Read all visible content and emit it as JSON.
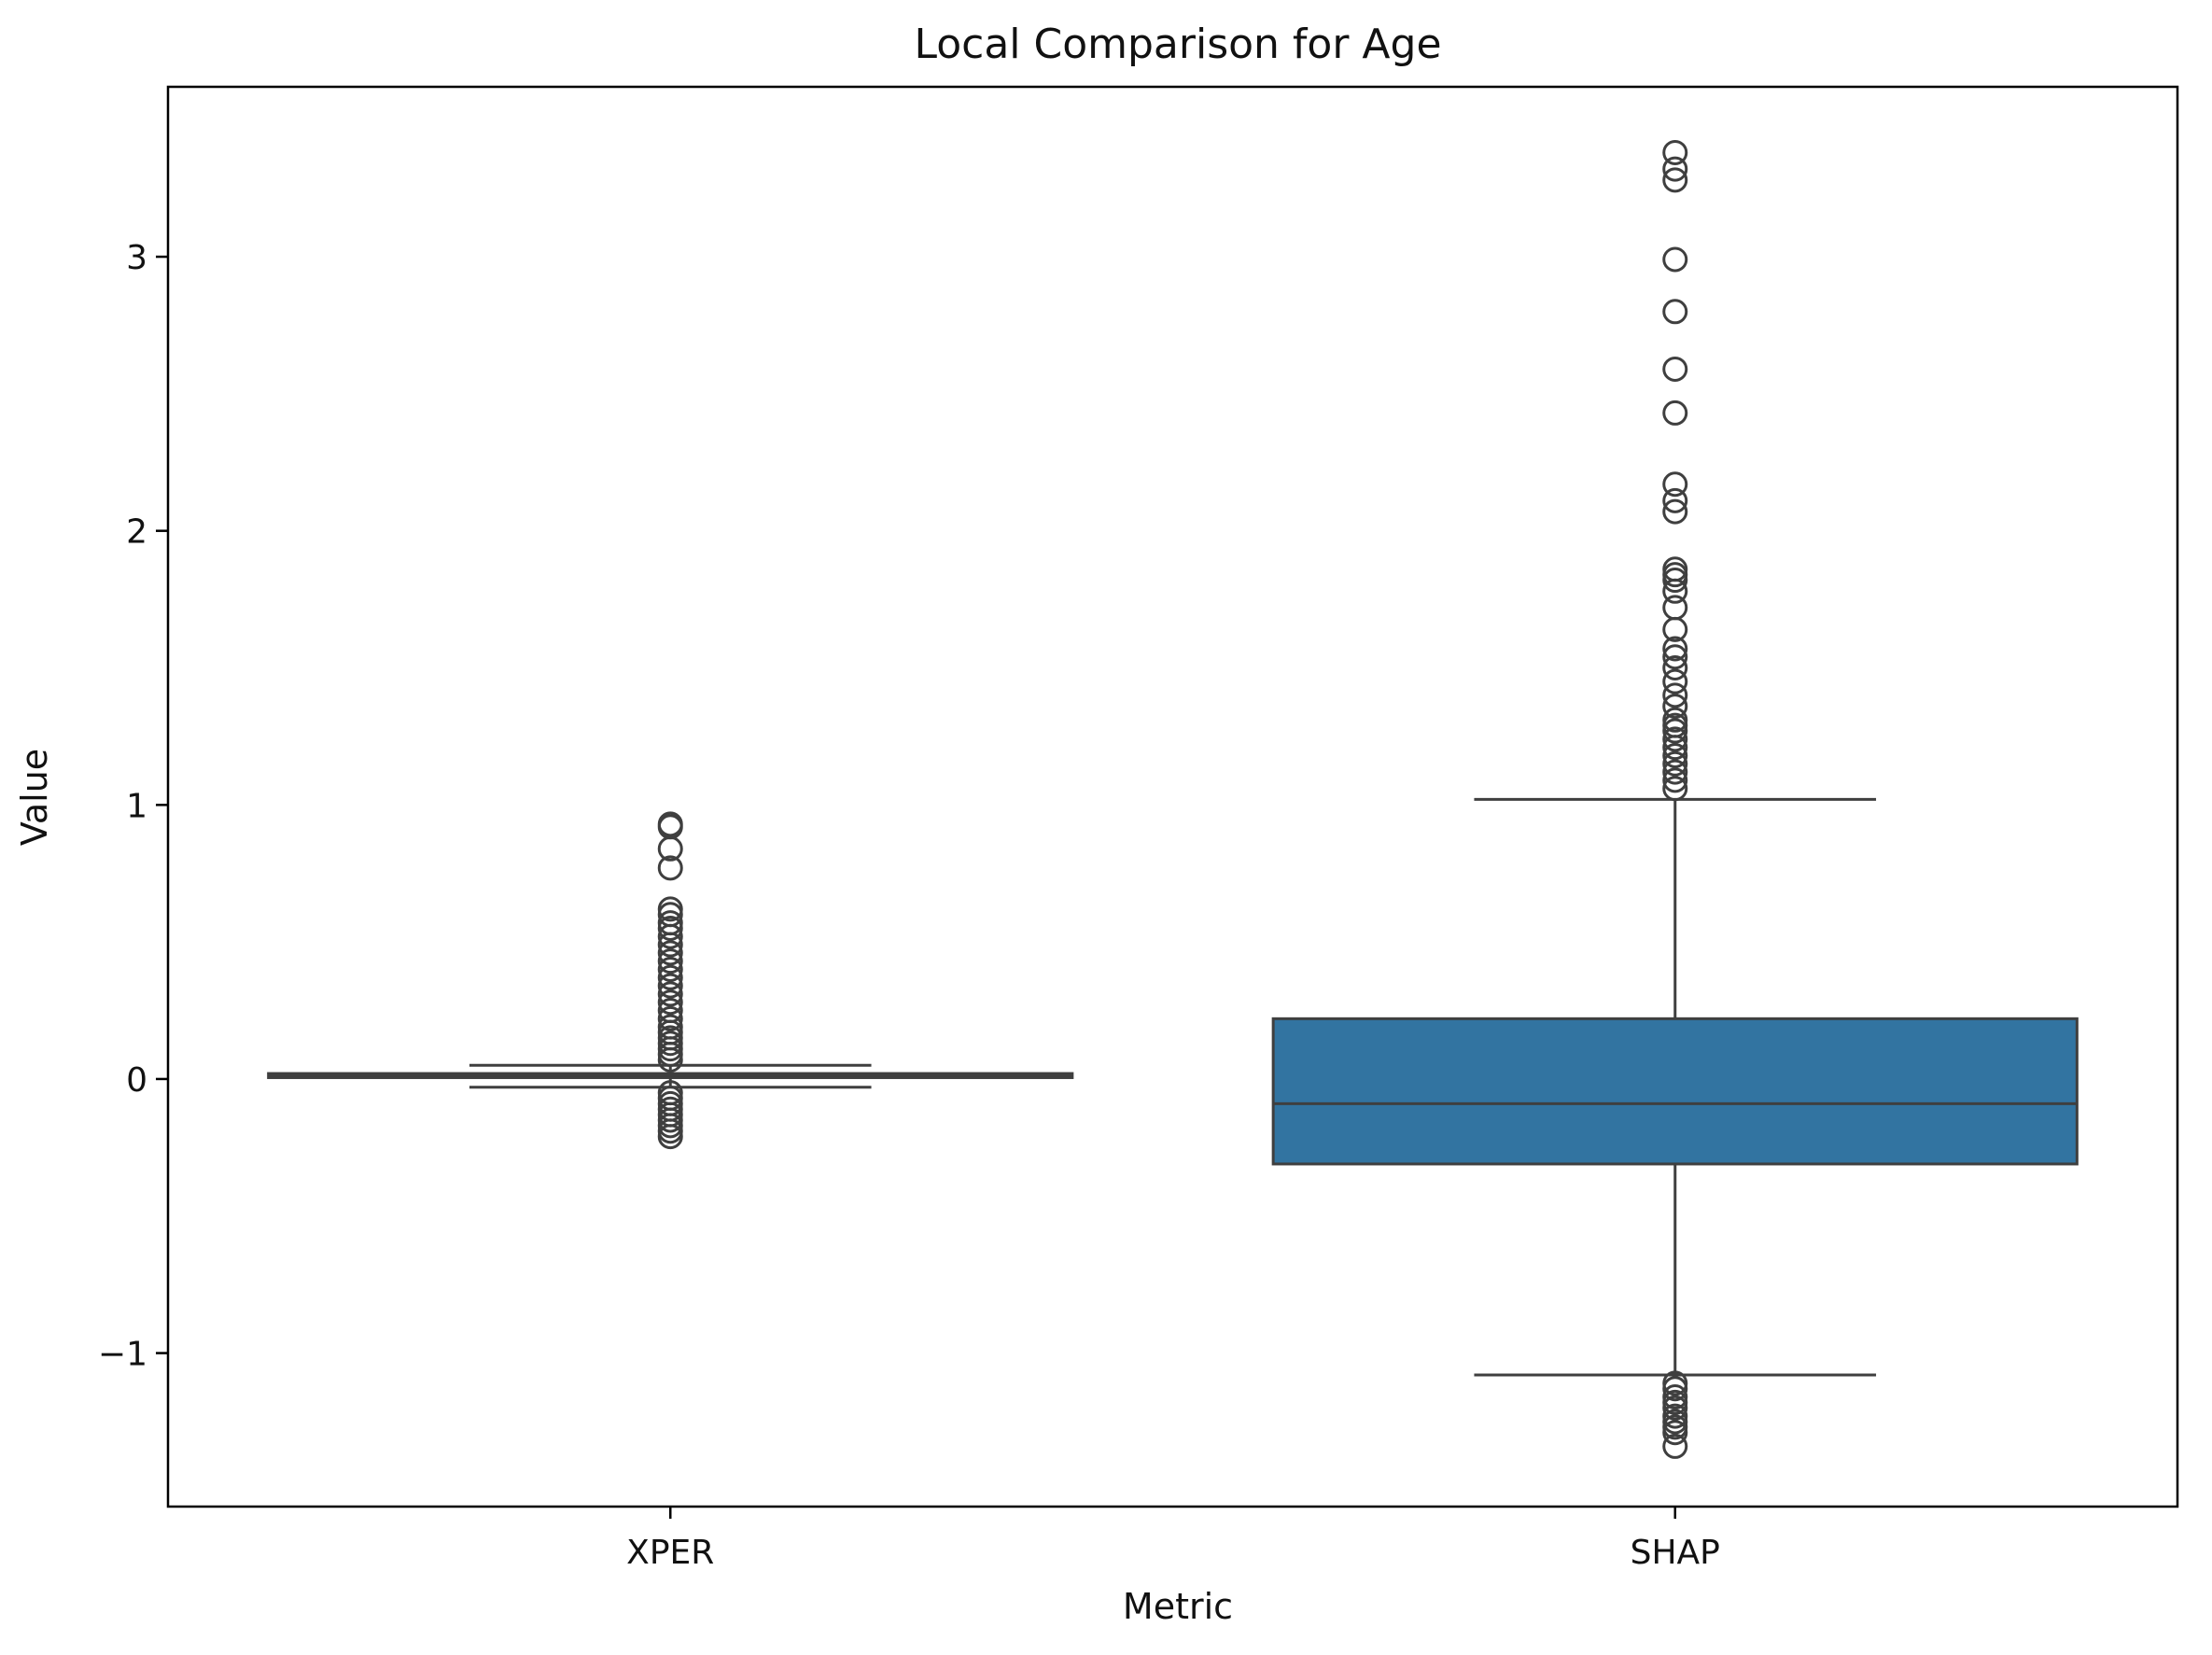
{
  "chart_data": {
    "type": "box",
    "title": "Local Comparison for Age",
    "xlabel": "Metric",
    "ylabel": "Value",
    "ylim": [
      -1.56,
      3.62
    ],
    "yticks": [
      -1,
      0,
      1,
      2,
      3
    ],
    "ytick_labels": [
      "−1",
      "0",
      "1",
      "2",
      "3"
    ],
    "grid": false,
    "legend": "none",
    "categories": [
      "XPER",
      "SHAP"
    ],
    "series": [
      {
        "category": "XPER",
        "color": "#1f77b4",
        "q1": 0.005,
        "median": 0.012,
        "q3": 0.02,
        "whisker_low": -0.03,
        "whisker_high": 0.05,
        "outliers": [
          0.93,
          0.92,
          0.84,
          0.77,
          0.62,
          0.6,
          0.57,
          0.55,
          0.52,
          0.49,
          0.46,
          0.43,
          0.4,
          0.37,
          0.34,
          0.31,
          0.28,
          0.25,
          0.22,
          0.19,
          0.17,
          0.15,
          0.13,
          0.11,
          0.09,
          0.07,
          -0.05,
          -0.07,
          -0.09,
          -0.11,
          -0.13,
          -0.15,
          -0.17,
          -0.19,
          -0.21
        ]
      },
      {
        "category": "SHAP",
        "color": "#3274a1",
        "q1": -0.31,
        "median": -0.09,
        "q3": 0.22,
        "whisker_low": -1.08,
        "whisker_high": 1.02,
        "outliers": [
          3.38,
          3.32,
          3.28,
          2.99,
          2.8,
          2.59,
          2.43,
          2.17,
          2.11,
          2.07,
          1.86,
          1.84,
          1.82,
          1.78,
          1.72,
          1.64,
          1.57,
          1.54,
          1.5,
          1.45,
          1.4,
          1.36,
          1.31,
          1.29,
          1.27,
          1.24,
          1.21,
          1.18,
          1.15,
          1.12,
          1.09,
          1.06,
          -1.11,
          -1.13,
          -1.16,
          -1.18,
          -1.2,
          -1.23,
          -1.25,
          -1.27,
          -1.29,
          -1.34
        ]
      }
    ]
  }
}
